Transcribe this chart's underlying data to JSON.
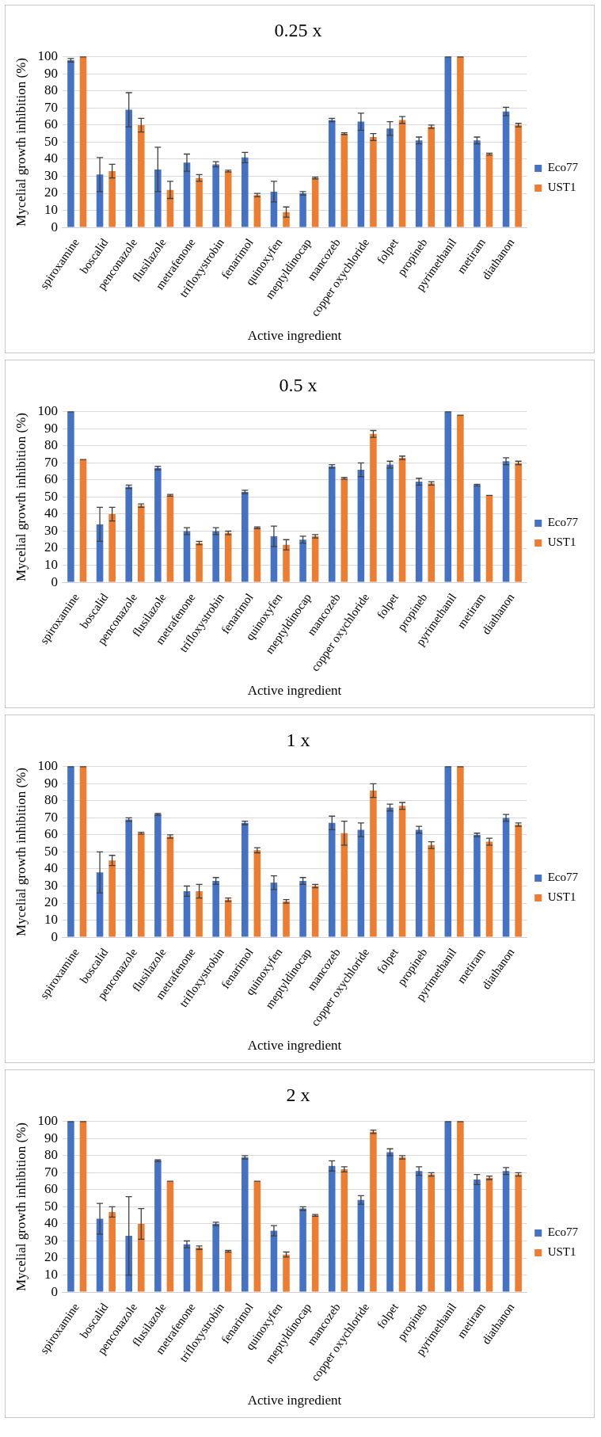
{
  "chart_data": [
    {
      "type": "bar",
      "title": "0.25 x",
      "xlabel": "Active ingredient",
      "ylabel": "Mycelial growth inhibition (%)",
      "categories": [
        "spiroxamine",
        "boscalid",
        "penconazole",
        "flusilazole",
        "metrafenone",
        "trifloxystrobin",
        "fenarimol",
        "quinoxyfen",
        "meptyldinocap",
        "mancozeb",
        "copper oxychloride",
        "folpet",
        "propineb",
        "pyrimethanil",
        "metiram",
        "diathanon"
      ],
      "ylim": [
        0,
        100
      ],
      "yticks": [
        0,
        10,
        20,
        30,
        40,
        50,
        60,
        70,
        80,
        90,
        100
      ],
      "grid": "y",
      "legend": "right",
      "series": [
        {
          "name": "Eco77",
          "color": "#4472c4",
          "values": [
            98,
            31,
            69,
            34,
            38,
            37,
            41,
            21,
            20,
            63,
            62,
            58,
            51,
            100,
            51,
            68
          ],
          "errors": [
            1,
            10,
            10,
            13,
            5,
            1.5,
            3,
            6,
            1,
            1,
            5,
            4,
            2,
            0,
            2,
            2.5
          ]
        },
        {
          "name": "UST1",
          "color": "#ed7d31",
          "values": [
            100,
            33,
            60,
            22,
            29,
            33,
            19,
            9,
            29,
            55,
            53,
            63,
            59,
            100,
            43,
            60
          ],
          "errors": [
            0,
            4,
            4,
            5,
            2,
            0.5,
            1,
            3,
            0.5,
            0.5,
            2,
            2,
            1,
            0,
            0.5,
            1
          ]
        }
      ]
    },
    {
      "type": "bar",
      "title": "0.5 x",
      "xlabel": "Active ingredient",
      "ylabel": "Mycelial growth inhibition (%)",
      "categories": [
        "spiroxamine",
        "boscalid",
        "penconazole",
        "flusilazole",
        "metrafenone",
        "trifloxystrobin",
        "fenarimol",
        "quinoxyfen",
        "meptyldinocap",
        "mancozeb",
        "copper oxychloride",
        "folpet",
        "propineb",
        "pyrimethanil",
        "metiram",
        "diathanon"
      ],
      "ylim": [
        0,
        100
      ],
      "yticks": [
        0,
        10,
        20,
        30,
        40,
        50,
        60,
        70,
        80,
        90,
        100
      ],
      "grid": "y",
      "legend": "right",
      "series": [
        {
          "name": "Eco77",
          "color": "#4472c4",
          "values": [
            100,
            34,
            56,
            67,
            30,
            30,
            53,
            27,
            25,
            68,
            66,
            69,
            59,
            100,
            57,
            71
          ],
          "errors": [
            0,
            10,
            1,
            1,
            2,
            2,
            1,
            6,
            2,
            1,
            4,
            2,
            2,
            0,
            0.5,
            2
          ]
        },
        {
          "name": "UST1",
          "color": "#ed7d31",
          "values": [
            72,
            40,
            45,
            51,
            23,
            29,
            32,
            22,
            27,
            61,
            87,
            73,
            58,
            98,
            51,
            70
          ],
          "errors": [
            0,
            4,
            1,
            0.5,
            1,
            1,
            0.5,
            3,
            1,
            0.5,
            2,
            1,
            1,
            0,
            0,
            1
          ]
        }
      ]
    },
    {
      "type": "bar",
      "title": "1 x",
      "xlabel": "Active ingredient",
      "ylabel": "Mycelial growth inhibition (%)",
      "categories": [
        "spiroxamine",
        "boscalid",
        "penconazole",
        "flusilazole",
        "metrafenone",
        "trifloxystrobin",
        "fenarimol",
        "quinoxyfen",
        "meptyldinocap",
        "mancozeb",
        "copper oxychloride",
        "folpet",
        "propineb",
        "pyrimethanil",
        "metiram",
        "diathanon"
      ],
      "ylim": [
        0,
        100
      ],
      "yticks": [
        0,
        10,
        20,
        30,
        40,
        50,
        60,
        70,
        80,
        90,
        100
      ],
      "grid": "y",
      "legend": "right",
      "series": [
        {
          "name": "Eco77",
          "color": "#4472c4",
          "values": [
            100,
            38,
            69,
            72,
            27,
            33,
            67,
            32,
            33,
            67,
            63,
            76,
            63,
            100,
            60,
            70
          ],
          "errors": [
            0,
            12,
            1,
            0.5,
            3,
            2,
            1,
            4,
            2,
            4,
            4,
            2,
            2,
            0,
            1,
            2
          ]
        },
        {
          "name": "UST1",
          "color": "#ed7d31",
          "values": [
            100,
            45,
            61,
            59,
            27,
            22,
            51,
            21,
            30,
            61,
            86,
            77,
            54,
            100,
            56,
            66
          ],
          "errors": [
            0,
            3,
            0.5,
            1,
            4,
            1,
            1.5,
            1,
            1,
            7,
            4,
            2,
            2,
            0,
            2,
            1
          ]
        }
      ]
    },
    {
      "type": "bar",
      "title": "2 x",
      "xlabel": "Active ingredient",
      "ylabel": "Mycelial growth inhibition (%)",
      "categories": [
        "spiroxamine",
        "boscalid",
        "penconazole",
        "flusilazole",
        "metrafenone",
        "trifloxystrobin",
        "fenarimol",
        "quinoxyfen",
        "meptyldinocap",
        "mancozeb",
        "copper oxychloride",
        "folpet",
        "propineb",
        "pyrimethanil",
        "metiram",
        "diathanon"
      ],
      "ylim": [
        0,
        100
      ],
      "yticks": [
        0,
        10,
        20,
        30,
        40,
        50,
        60,
        70,
        80,
        90,
        100
      ],
      "grid": "y",
      "legend": "right",
      "series": [
        {
          "name": "Eco77",
          "color": "#4472c4",
          "values": [
            100,
            43,
            33,
            77,
            28,
            40,
            79,
            36,
            49,
            74,
            54,
            82,
            71,
            100,
            66,
            71
          ],
          "errors": [
            0,
            9,
            23,
            0.5,
            2,
            1,
            1,
            3,
            1,
            3,
            2.5,
            2,
            2.5,
            0,
            3,
            2
          ]
        },
        {
          "name": "UST1",
          "color": "#ed7d31",
          "values": [
            100,
            47,
            40,
            65,
            26,
            24,
            65,
            22,
            45,
            72,
            94,
            79,
            69,
            100,
            67,
            69
          ],
          "errors": [
            0,
            3,
            9,
            0,
            1,
            0.5,
            0,
            1.5,
            0.5,
            1.5,
            1,
            1,
            1,
            0,
            1,
            1
          ]
        }
      ]
    }
  ]
}
